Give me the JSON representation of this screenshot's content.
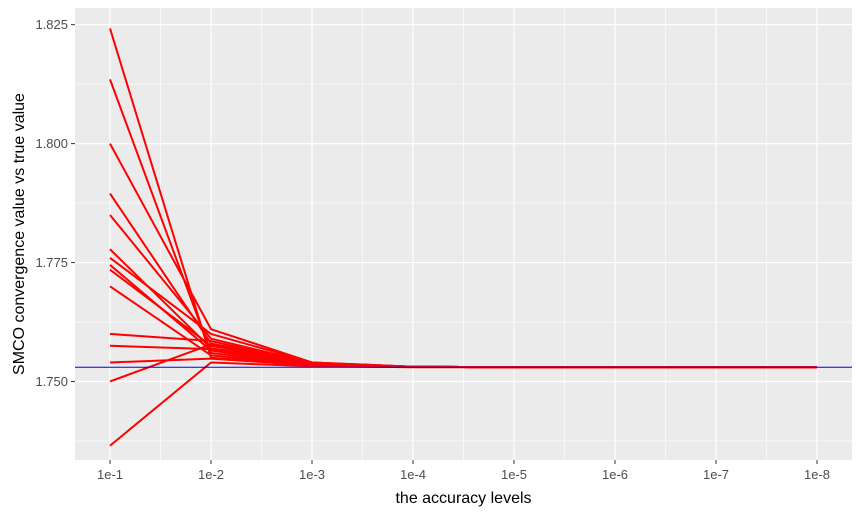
{
  "chart_data": {
    "type": "line",
    "title": "",
    "xlabel": "the accuracy levels",
    "ylabel": "SMCO convergence value vs true value",
    "x_categories": [
      "1e-1",
      "1e-2",
      "1e-3",
      "1e-4",
      "1e-5",
      "1e-6",
      "1e-7",
      "1e-8"
    ],
    "y_ticks": [
      1.75,
      1.775,
      1.8,
      1.825
    ],
    "y_tick_labels": [
      "1.750",
      "1.775",
      "1.800",
      "1.825"
    ],
    "ylim": [
      1.7335,
      1.8285
    ],
    "grid": true,
    "reference_line": {
      "value": 1.753,
      "color": "#0000ff"
    },
    "series_color": "#ff0000",
    "panel_background": "#ebebeb",
    "series": [
      {
        "values": [
          1.8242,
          1.755,
          1.7535,
          1.7531,
          1.753,
          1.753,
          1.753,
          1.753
        ]
      },
      {
        "values": [
          1.8135,
          1.756,
          1.7536,
          1.7531,
          1.753,
          1.753,
          1.753,
          1.753
        ]
      },
      {
        "values": [
          1.8,
          1.761,
          1.754,
          1.7531,
          1.753,
          1.753,
          1.753,
          1.753
        ]
      },
      {
        "values": [
          1.7895,
          1.758,
          1.7538,
          1.7531,
          1.753,
          1.753,
          1.753,
          1.753
        ]
      },
      {
        "values": [
          1.785,
          1.759,
          1.7539,
          1.7531,
          1.753,
          1.753,
          1.753,
          1.753
        ]
      },
      {
        "values": [
          1.7778,
          1.757,
          1.7537,
          1.7531,
          1.753,
          1.753,
          1.753,
          1.753
        ]
      },
      {
        "values": [
          1.776,
          1.76,
          1.754,
          1.7531,
          1.753,
          1.753,
          1.753,
          1.753
        ]
      },
      {
        "values": [
          1.7745,
          1.7565,
          1.7536,
          1.7531,
          1.753,
          1.753,
          1.753,
          1.753
        ]
      },
      {
        "values": [
          1.7735,
          1.7575,
          1.7537,
          1.7531,
          1.753,
          1.753,
          1.753,
          1.753
        ]
      },
      {
        "values": [
          1.77,
          1.7555,
          1.7535,
          1.7531,
          1.753,
          1.753,
          1.753,
          1.753
        ]
      },
      {
        "values": [
          1.76,
          1.7585,
          1.7538,
          1.7531,
          1.753,
          1.753,
          1.753,
          1.753
        ]
      },
      {
        "values": [
          1.7575,
          1.7568,
          1.7536,
          1.7531,
          1.753,
          1.753,
          1.753,
          1.753
        ]
      },
      {
        "values": [
          1.754,
          1.7548,
          1.7534,
          1.7531,
          1.753,
          1.753,
          1.753,
          1.753
        ]
      },
      {
        "values": [
          1.75,
          1.7578,
          1.7537,
          1.7531,
          1.753,
          1.753,
          1.753,
          1.753
        ]
      },
      {
        "values": [
          1.7365,
          1.754,
          1.7532,
          1.753,
          1.753,
          1.753,
          1.753,
          1.753
        ]
      }
    ]
  }
}
